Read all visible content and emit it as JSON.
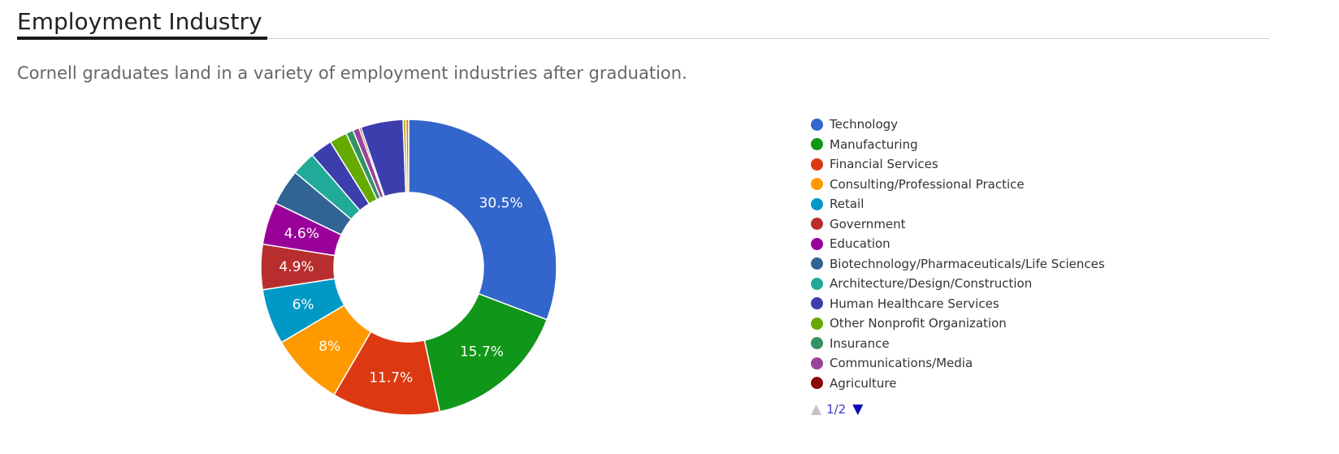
{
  "section": {
    "title": "Employment Industry",
    "subtitle": "Cornell graduates land in a variety of employment industries after graduation."
  },
  "chart_data": {
    "type": "pie",
    "donut": true,
    "legend_position": "right",
    "slices": [
      {
        "name": "Technology",
        "value": 30.5,
        "color": "#3366cc",
        "label": "30.5%"
      },
      {
        "name": "Manufacturing",
        "value": 15.7,
        "color": "#109618",
        "label": "15.7%"
      },
      {
        "name": "Financial Services",
        "value": 11.7,
        "color": "#dc3912",
        "label": "11.7%"
      },
      {
        "name": "Consulting/Professional Practice",
        "value": 8,
        "color": "#ff9900",
        "label": "8%"
      },
      {
        "name": "Retail",
        "value": 6,
        "color": "#0099c6",
        "label": "6%"
      },
      {
        "name": "Government",
        "value": 4.9,
        "color": "#b82e2e",
        "label": "4.9%"
      },
      {
        "name": "Education",
        "value": 4.6,
        "color": "#990099",
        "label": "4.6%"
      },
      {
        "name": "Biotechnology/Pharmaceuticals/Life Sciences",
        "value": 3.9,
        "color": "#316395",
        "label": ""
      },
      {
        "name": "Architecture/Design/Construction",
        "value": 2.6,
        "color": "#22aa99",
        "label": ""
      },
      {
        "name": "Human Healthcare Services",
        "value": 2.4,
        "color": "#3b3eac",
        "label": ""
      },
      {
        "name": "Other Nonprofit Organization",
        "value": 1.9,
        "color": "#66aa00",
        "label": ""
      },
      {
        "name": "Insurance",
        "value": 0.8,
        "color": "#329262",
        "label": ""
      },
      {
        "name": "Communications/Media",
        "value": 0.7,
        "color": "#994499",
        "label": ""
      },
      {
        "name": "Agriculture",
        "value": 0.2,
        "color": "#8b0707",
        "label": ""
      },
      {
        "name": "",
        "value": 4.6,
        "color": "#3b3eac",
        "label": ""
      },
      {
        "name": "",
        "value": 0.3,
        "color": "#aaaa11",
        "label": ""
      },
      {
        "name": "",
        "value": 0.3,
        "color": "#e67300",
        "label": ""
      }
    ]
  },
  "legend": {
    "items": [
      {
        "label": "Technology",
        "color": "#3366cc"
      },
      {
        "label": "Manufacturing",
        "color": "#109618"
      },
      {
        "label": "Financial Services",
        "color": "#dc3912"
      },
      {
        "label": "Consulting/Professional Practice",
        "color": "#ff9900"
      },
      {
        "label": "Retail",
        "color": "#0099c6"
      },
      {
        "label": "Government",
        "color": "#b82e2e"
      },
      {
        "label": "Education",
        "color": "#990099"
      },
      {
        "label": "Biotechnology/Pharmaceuticals/Life Sciences",
        "color": "#316395"
      },
      {
        "label": "Architecture/Design/Construction",
        "color": "#22aa99"
      },
      {
        "label": "Human Healthcare Services",
        "color": "#3b3eac"
      },
      {
        "label": "Other Nonprofit Organization",
        "color": "#66aa00"
      },
      {
        "label": "Insurance",
        "color": "#329262"
      },
      {
        "label": "Communications/Media",
        "color": "#994499"
      },
      {
        "label": "Agriculture",
        "color": "#8b0707"
      }
    ],
    "pager": {
      "up_icon": "triangle-up-icon",
      "page": "1/2",
      "down_icon": "triangle-down-icon"
    }
  }
}
